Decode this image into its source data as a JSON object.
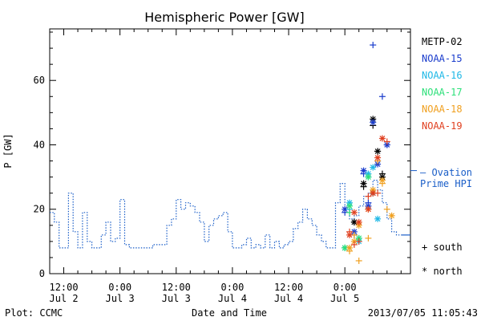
{
  "chart_data": {
    "type": "scatter",
    "title": "Hemispheric Power [GW]",
    "xlabel": "Date and Time",
    "ylabel": "P [GW]",
    "footer_left": "Plot: CCMC",
    "footer_right": "2013/07/05 11:05:43",
    "x_unit": "hours since 2013/07/02 00:00",
    "xlim": [
      9,
      86
    ],
    "ylim": [
      0,
      76
    ],
    "yticks": [
      0,
      20,
      40,
      60
    ],
    "xticks": [
      {
        "x": 12,
        "line1": "12:00",
        "line2": "Jul 2"
      },
      {
        "x": 24,
        "line1": "0:00",
        "line2": "Jul 3"
      },
      {
        "x": 36,
        "line1": "12:00",
        "line2": "Jul 3"
      },
      {
        "x": 48,
        "line1": "0:00",
        "line2": "Jul 4"
      },
      {
        "x": 60,
        "line1": "12:00",
        "line2": "Jul 4"
      },
      {
        "x": 72,
        "line1": "0:00",
        "line2": "Jul 5"
      }
    ],
    "ovation": {
      "name": "Ovation Prime HPI",
      "label_line1": "— Ovation",
      "label_line2": "Prime HPI",
      "color": "#1a5ec8",
      "end_value": 12,
      "points": [
        [
          9,
          19
        ],
        [
          10,
          19
        ],
        [
          10,
          16
        ],
        [
          11,
          16
        ],
        [
          11,
          8
        ],
        [
          12,
          8
        ],
        [
          12,
          8
        ],
        [
          13,
          8
        ],
        [
          13,
          25
        ],
        [
          14,
          25
        ],
        [
          14,
          13
        ],
        [
          15,
          13
        ],
        [
          15,
          8
        ],
        [
          16,
          8
        ],
        [
          16,
          19
        ],
        [
          17,
          19
        ],
        [
          17,
          10
        ],
        [
          18,
          10
        ],
        [
          18,
          8
        ],
        [
          19,
          8
        ],
        [
          19,
          8
        ],
        [
          20,
          8
        ],
        [
          20,
          12
        ],
        [
          21,
          12
        ],
        [
          21,
          16
        ],
        [
          22,
          16
        ],
        [
          22,
          10
        ],
        [
          23,
          10
        ],
        [
          23,
          11
        ],
        [
          24,
          11
        ],
        [
          24,
          23
        ],
        [
          25,
          23
        ],
        [
          25,
          9
        ],
        [
          26,
          9
        ],
        [
          26,
          8
        ],
        [
          29,
          8
        ],
        [
          29,
          8
        ],
        [
          31,
          8
        ],
        [
          31,
          9
        ],
        [
          34,
          9
        ],
        [
          34,
          15
        ],
        [
          35,
          15
        ],
        [
          35,
          17
        ],
        [
          36,
          17
        ],
        [
          36,
          23
        ],
        [
          37,
          23
        ],
        [
          37,
          20
        ],
        [
          38,
          20
        ],
        [
          38,
          22
        ],
        [
          39,
          22
        ],
        [
          39,
          21
        ],
        [
          40,
          21
        ],
        [
          40,
          19
        ],
        [
          41,
          19
        ],
        [
          41,
          16
        ],
        [
          42,
          16
        ],
        [
          42,
          10
        ],
        [
          43,
          10
        ],
        [
          43,
          15
        ],
        [
          44,
          15
        ],
        [
          44,
          17
        ],
        [
          45,
          17
        ],
        [
          45,
          18
        ],
        [
          46,
          18
        ],
        [
          46,
          19
        ],
        [
          47,
          19
        ],
        [
          47,
          13
        ],
        [
          48,
          13
        ],
        [
          48,
          8
        ],
        [
          50,
          8
        ],
        [
          50,
          9
        ],
        [
          51,
          9
        ],
        [
          51,
          11
        ],
        [
          52,
          11
        ],
        [
          52,
          8
        ],
        [
          53,
          8
        ],
        [
          53,
          9
        ],
        [
          54,
          9
        ],
        [
          54,
          8
        ],
        [
          55,
          8
        ],
        [
          55,
          12
        ],
        [
          56,
          12
        ],
        [
          56,
          8
        ],
        [
          57,
          8
        ],
        [
          57,
          10
        ],
        [
          58,
          10
        ],
        [
          58,
          8
        ],
        [
          59,
          8
        ],
        [
          59,
          9
        ],
        [
          60,
          9
        ],
        [
          60,
          10
        ],
        [
          61,
          10
        ],
        [
          61,
          14
        ],
        [
          62,
          14
        ],
        [
          62,
          16
        ],
        [
          63,
          16
        ],
        [
          63,
          20
        ],
        [
          64,
          20
        ],
        [
          64,
          17
        ],
        [
          65,
          17
        ],
        [
          65,
          15
        ],
        [
          66,
          15
        ],
        [
          66,
          12
        ],
        [
          67,
          12
        ],
        [
          67,
          10
        ],
        [
          68,
          10
        ],
        [
          68,
          8
        ],
        [
          69,
          8
        ],
        [
          69,
          8
        ],
        [
          70,
          8
        ],
        [
          70,
          22
        ],
        [
          71,
          22
        ],
        [
          71,
          28
        ],
        [
          72,
          28
        ],
        [
          72,
          20
        ],
        [
          73,
          20
        ],
        [
          73,
          17
        ],
        [
          74,
          17
        ],
        [
          74,
          18
        ],
        [
          75,
          18
        ],
        [
          75,
          21
        ],
        [
          76,
          21
        ],
        [
          76,
          24
        ],
        [
          77,
          24
        ],
        [
          77,
          25
        ],
        [
          78,
          25
        ],
        [
          78,
          29
        ],
        [
          79,
          29
        ],
        [
          79,
          26
        ],
        [
          80,
          26
        ],
        [
          80,
          22
        ],
        [
          81,
          22
        ],
        [
          81,
          17
        ],
        [
          82,
          17
        ],
        [
          82,
          13
        ],
        [
          83,
          13
        ],
        [
          83,
          12
        ],
        [
          84,
          12
        ]
      ]
    },
    "series": [
      {
        "name": "METP-02",
        "color": "#000000",
        "north": [
          [
            76,
            28
          ],
          [
            78,
            48
          ],
          [
            79,
            38
          ],
          [
            80,
            30
          ],
          [
            74,
            16
          ],
          [
            78,
            25
          ]
        ],
        "south": [
          [
            76,
            27
          ],
          [
            78,
            46
          ],
          [
            79,
            38
          ],
          [
            80,
            31
          ],
          [
            74,
            16
          ]
        ]
      },
      {
        "name": "NOAA-15",
        "color": "#1a3ccc",
        "north": [
          [
            72,
            20
          ],
          [
            74,
            13
          ],
          [
            76,
            32
          ],
          [
            77,
            21
          ],
          [
            78,
            47
          ],
          [
            79,
            34
          ],
          [
            81,
            40
          ]
        ],
        "south": [
          [
            72,
            19
          ],
          [
            74,
            12
          ],
          [
            76,
            31
          ],
          [
            77,
            22
          ],
          [
            78,
            71
          ],
          [
            80,
            55
          ],
          [
            79,
            35
          ],
          [
            81,
            40
          ]
        ]
      },
      {
        "name": "NOAA-16",
        "color": "#1fb8e6",
        "north": [
          [
            72,
            8
          ],
          [
            73,
            22
          ],
          [
            75,
            10
          ],
          [
            77,
            31
          ],
          [
            78,
            33
          ],
          [
            79,
            17
          ]
        ],
        "south": [
          [
            72,
            8
          ],
          [
            73,
            20
          ],
          [
            75,
            11
          ],
          [
            77,
            30
          ]
        ]
      },
      {
        "name": "NOAA-17",
        "color": "#2ee07a",
        "north": [
          [
            72,
            8
          ],
          [
            73,
            21
          ],
          [
            75,
            11
          ],
          [
            77,
            30
          ]
        ],
        "south": [
          [
            72,
            8
          ],
          [
            73,
            19
          ]
        ]
      },
      {
        "name": "NOAA-18",
        "color": "#f0a020",
        "north": [
          [
            73,
            8
          ],
          [
            74,
            10
          ],
          [
            75,
            15
          ],
          [
            77,
            20
          ],
          [
            78,
            26
          ],
          [
            80,
            29
          ],
          [
            82,
            18
          ]
        ],
        "south": [
          [
            73,
            7
          ],
          [
            74,
            12
          ],
          [
            75,
            4
          ],
          [
            77,
            11
          ],
          [
            79,
            35
          ],
          [
            80,
            28
          ],
          [
            81,
            20
          ]
        ]
      },
      {
        "name": "NOAA-19",
        "color": "#e04020",
        "north": [
          [
            73,
            12
          ],
          [
            74,
            19
          ],
          [
            75,
            16
          ],
          [
            77,
            20
          ],
          [
            78,
            25
          ],
          [
            79,
            36
          ],
          [
            80,
            42
          ]
        ],
        "south": [
          [
            73,
            13
          ],
          [
            74,
            9
          ],
          [
            75,
            10
          ],
          [
            77,
            24
          ],
          [
            79,
            25
          ],
          [
            81,
            41
          ]
        ]
      }
    ],
    "marker_legend": [
      {
        "symbol": "+",
        "label": "south"
      },
      {
        "symbol": "*",
        "label": "north"
      }
    ],
    "grid": false,
    "legend_position": "right"
  }
}
